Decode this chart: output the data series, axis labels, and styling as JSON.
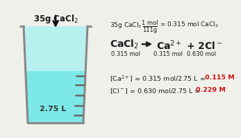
{
  "bg_color": "#f0f0eb",
  "liquid_color": "#7de8e8",
  "liquid_upper_color": "#b8f0f0",
  "beaker_outline": "#888888",
  "beaker_fill": "#d8f8f8",
  "top_label": "35g CaCl$_2$",
  "beaker_label": "2.75 L",
  "frac_top": "1 mol",
  "frac_bot": "111g",
  "line1_pre": "35g CaCl$_2$",
  "line1_post": "= 0.315 mol CaCl$_2$",
  "line2_left": "CaCl$_2$",
  "line2_right": "Ca$^{2+}$ + 2Cl$^-$",
  "mol1": "0.315 mol",
  "mol2": "0.315 mol",
  "mol3": "0.630 mol",
  "line3_pre": "[Ca$^{2+}$] = 0.315 mol/2.75 L = ",
  "line3_hi": "0.115 M",
  "line4_pre": "[Cl$^-$] = 0.630 mol/2.75 L = ",
  "line4_hi": "0.229 M",
  "highlight_color": "#cc1111",
  "text_color": "#1a1a1a",
  "tick_color": "#666666",
  "arrow_color": "#111111"
}
